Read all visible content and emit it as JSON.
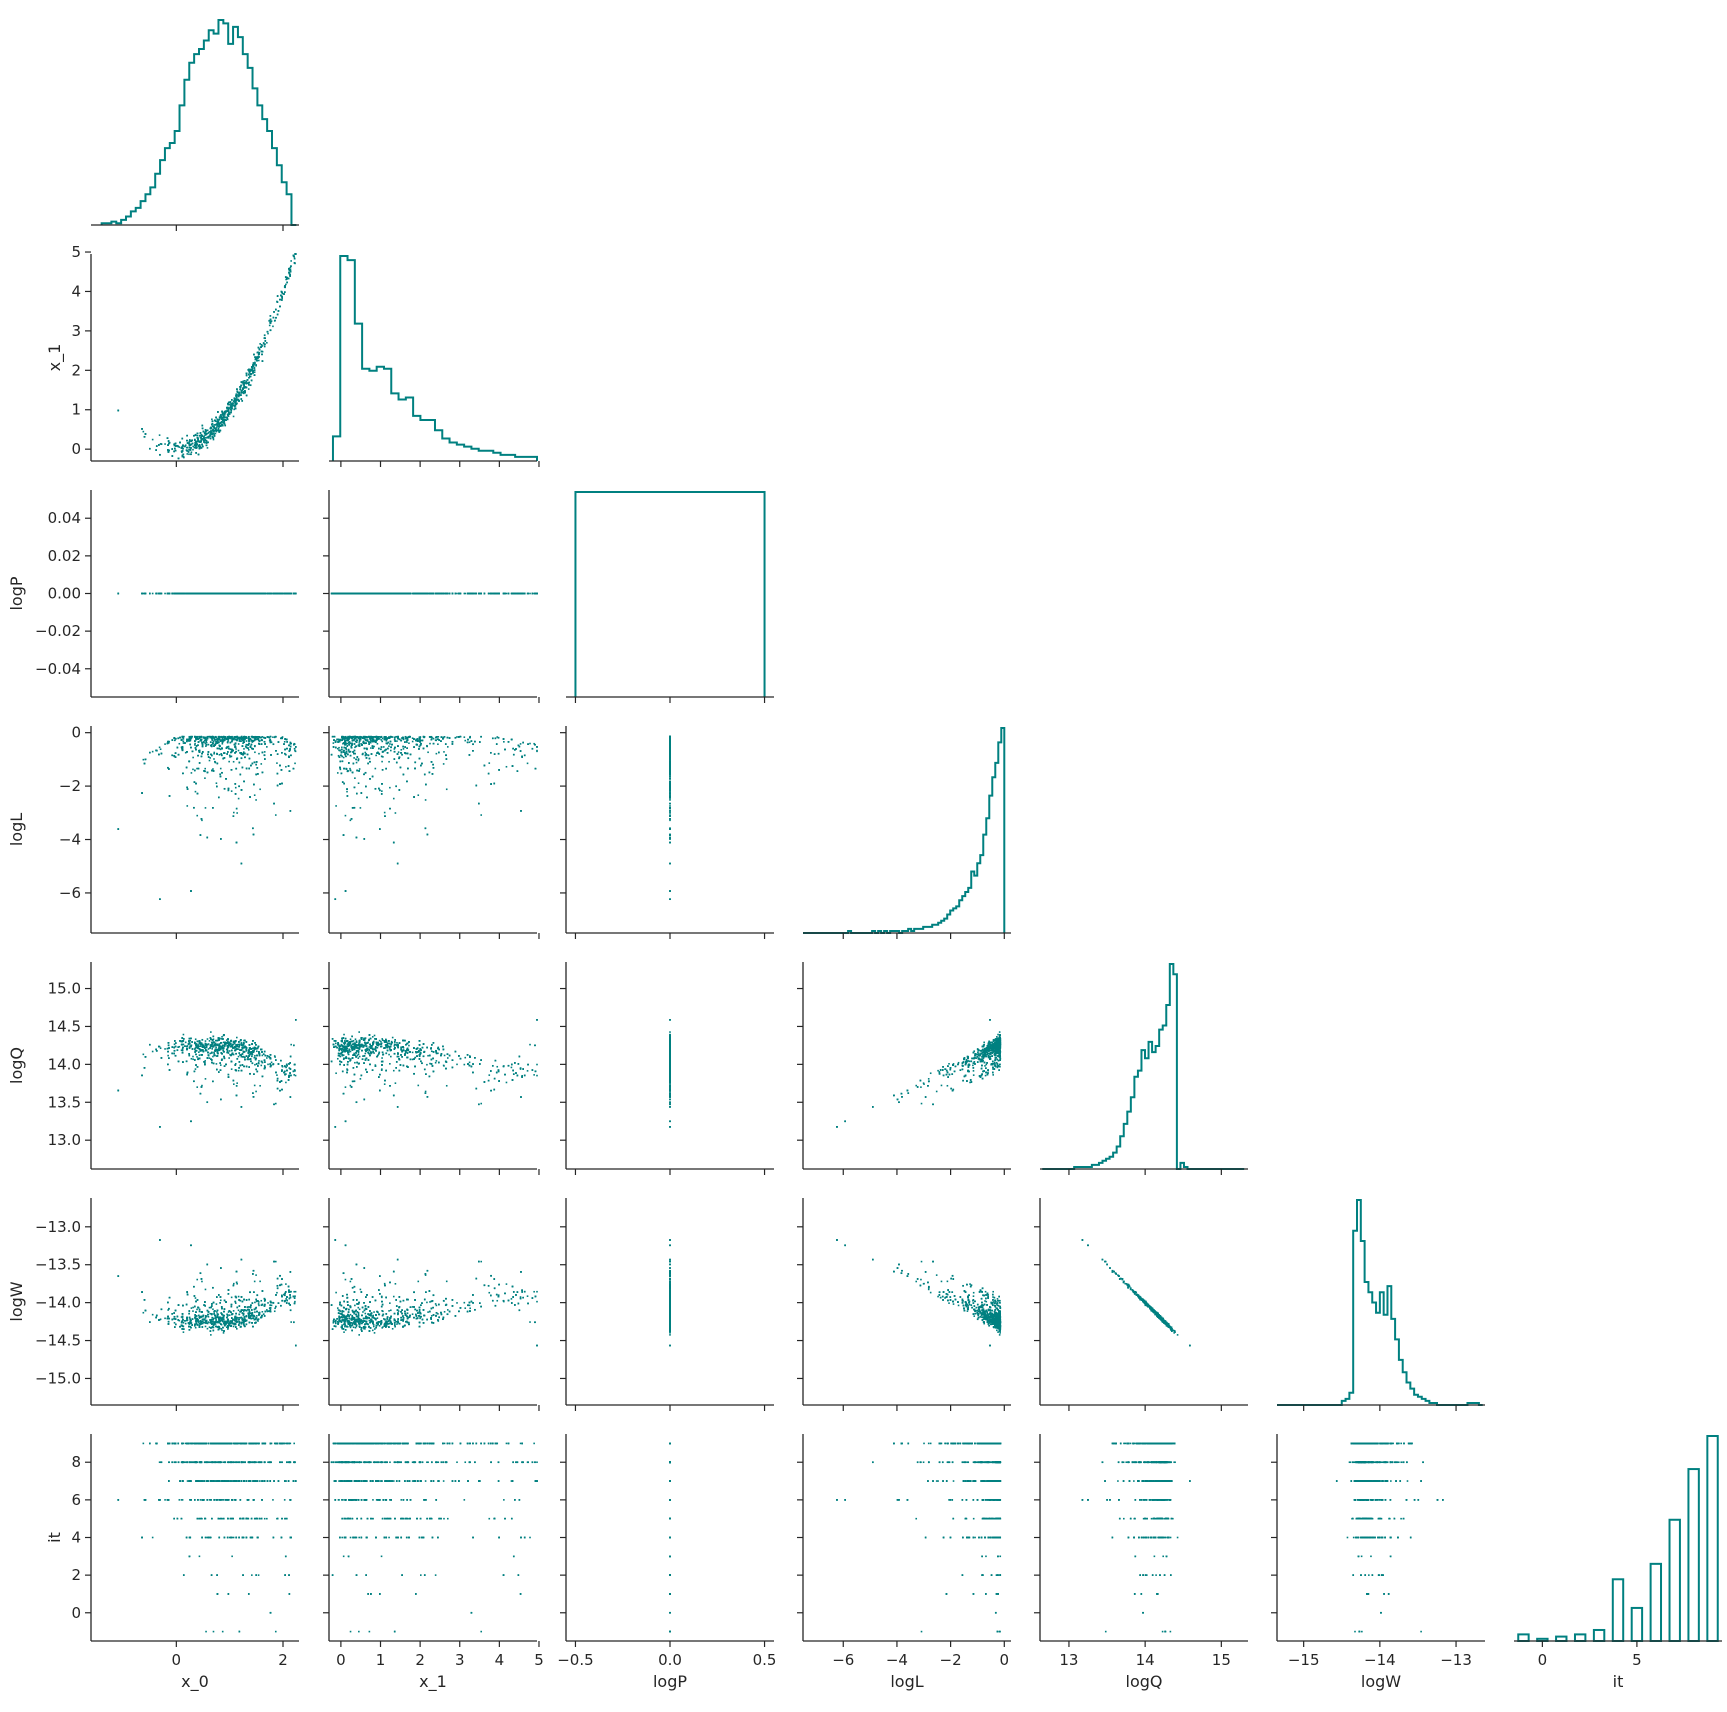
{
  "chart_data": {
    "type": "scatter",
    "figure": "corner plot",
    "color": "#008080",
    "variables": [
      "x_0",
      "x_1",
      "logP",
      "logL",
      "logQ",
      "logW",
      "it"
    ],
    "axes": {
      "x_0": {
        "label": "x_0",
        "range": [
          -1.6,
          2.3
        ],
        "ticks": [
          0,
          2
        ],
        "tick_labels": [
          "0",
          "2"
        ]
      },
      "x_1": {
        "label": "x_1",
        "range": [
          -0.3,
          4.95
        ],
        "ticks": [
          0,
          1,
          2,
          3,
          4,
          5
        ],
        "tick_labels": [
          "0",
          "1",
          "2",
          "3",
          "4",
          "5"
        ]
      },
      "logP": {
        "label": "logP",
        "range": [
          -0.055,
          0.055
        ],
        "ticks": [
          -0.04,
          -0.02,
          0.0,
          0.02,
          0.04
        ],
        "tick_labels": [
          "−0.04",
          "−0.02",
          "0.00",
          "0.02",
          "0.04"
        ],
        "x_range": [
          -0.55,
          0.55
        ],
        "x_ticks": [
          -0.5,
          0.0,
          0.5
        ],
        "x_tick_labels": [
          "−0.5",
          "0.0",
          "0.5"
        ]
      },
      "logL": {
        "label": "logL",
        "range": [
          -7.5,
          0.25
        ],
        "ticks": [
          -6,
          -4,
          -2,
          0
        ],
        "tick_labels": [
          "−6",
          "−4",
          "−2",
          "0"
        ]
      },
      "logQ": {
        "label": "logQ",
        "range": [
          12.62,
          15.35
        ],
        "ticks": [
          13.0,
          13.5,
          14.0,
          14.5,
          15.0
        ],
        "tick_labels": [
          "13.0",
          "13.5",
          "14.0",
          "14.5",
          "15.0"
        ],
        "x_ticks": [
          13,
          14,
          15
        ],
        "x_tick_labels": [
          "13",
          "14",
          "15"
        ]
      },
      "logW": {
        "label": "logW",
        "range": [
          -15.35,
          -12.62
        ],
        "ticks": [
          -15.0,
          -14.5,
          -14.0,
          -13.5,
          -13.0
        ],
        "tick_labels": [
          "−15.0",
          "−14.5",
          "−14.0",
          "−13.5",
          "−13.0"
        ],
        "x_ticks": [
          -15,
          -14,
          -13
        ],
        "x_tick_labels": [
          "−15",
          "−14",
          "−13"
        ]
      },
      "it": {
        "label": "it",
        "range": [
          -1.5,
          9.5
        ],
        "ticks": [
          0,
          2,
          4,
          6,
          8
        ],
        "tick_labels": [
          "0",
          "2",
          "4",
          "6",
          "8"
        ],
        "x_ticks": [
          0,
          5
        ],
        "x_tick_labels": [
          "0",
          "5"
        ]
      }
    },
    "histograms": {
      "x_0": {
        "edges_range": [
          -1.4,
          2.25
        ],
        "counts": [
          1,
          1,
          2,
          1,
          3,
          5,
          8,
          10,
          14,
          18,
          22,
          30,
          38,
          45,
          48,
          55,
          70,
          85,
          95,
          100,
          103,
          108,
          114,
          112,
          120,
          118,
          106,
          116,
          110,
          100,
          92,
          80,
          70,
          62,
          55,
          45,
          35,
          25,
          18,
          0
        ]
      },
      "x_1": {
        "edges_range": [
          -0.2,
          4.95
        ],
        "counts": [
          12,
          100,
          98,
          67,
          45,
          44,
          46,
          45,
          33,
          30,
          31,
          22,
          20,
          20,
          15,
          11,
          9,
          8,
          7,
          6,
          5,
          5,
          4,
          3,
          3,
          2,
          2,
          2
        ]
      },
      "logP": {
        "edges_range": [
          -0.5,
          0.5
        ],
        "counts": [
          1
        ]
      },
      "logL": {
        "edges_range": [
          -7.5,
          0.0
        ],
        "counts": [
          0,
          0,
          0,
          0,
          0,
          0,
          0,
          0,
          0,
          0,
          0,
          0,
          0,
          0,
          0,
          1,
          0,
          0,
          0,
          0,
          0,
          0,
          0,
          1,
          0,
          1,
          0,
          1,
          0,
          1,
          1,
          1,
          0,
          1,
          1,
          2,
          1,
          2,
          2,
          2,
          3,
          3,
          3,
          4,
          4,
          5,
          6,
          7,
          9,
          11,
          12,
          13,
          16,
          18,
          20,
          22,
          30,
          28,
          34,
          38,
          48,
          56,
          67,
          76,
          83,
          93,
          100
        ]
      },
      "logQ": {
        "edges_range": [
          12.65,
          15.3
        ],
        "counts": [
          0,
          0,
          0,
          0,
          0,
          0,
          0,
          0,
          0,
          1,
          1,
          1,
          1,
          1,
          2,
          2,
          3,
          4,
          5,
          6,
          8,
          11,
          16,
          22,
          28,
          35,
          45,
          48,
          58,
          54,
          62,
          57,
          60,
          68,
          70,
          80,
          100,
          95,
          0,
          3,
          1,
          0,
          0,
          0,
          0,
          0,
          0,
          0,
          0,
          0,
          0,
          0,
          0,
          0,
          0,
          0,
          0
        ]
      },
      "logW": {
        "edges_range": [
          -15.35,
          -12.65
        ],
        "counts": [
          0,
          0,
          0,
          0,
          0,
          0,
          0,
          0,
          0,
          0,
          0,
          0,
          0,
          0,
          0,
          0,
          0,
          2,
          3,
          6,
          85,
          100,
          80,
          60,
          55,
          50,
          45,
          55,
          44,
          58,
          42,
          32,
          22,
          16,
          11,
          8,
          5,
          4,
          3,
          2,
          1,
          1,
          0,
          0,
          0,
          0,
          0,
          0,
          0,
          0,
          1,
          1,
          1,
          0
        ]
      },
      "it": {
        "type": "bar",
        "x": [
          -1,
          0,
          1,
          2,
          3,
          4,
          5,
          6,
          7,
          8,
          9
        ],
        "counts": [
          3,
          1,
          2,
          3,
          5,
          28,
          15,
          35,
          55,
          78,
          93
        ]
      }
    },
    "scatter_notes": {
      "x_1_vs_x_0": "curved ridge x_1 ≈ x_0²",
      "logP_vs_all": "constant at 0.0",
      "logL_vs_x_0": "peak near x_0 ≈ 1",
      "logQ_vs_logL": "positive trend",
      "logW_vs_logQ": "linear, slope −1",
      "it_vs_all": "discrete rows at integer it values"
    }
  }
}
